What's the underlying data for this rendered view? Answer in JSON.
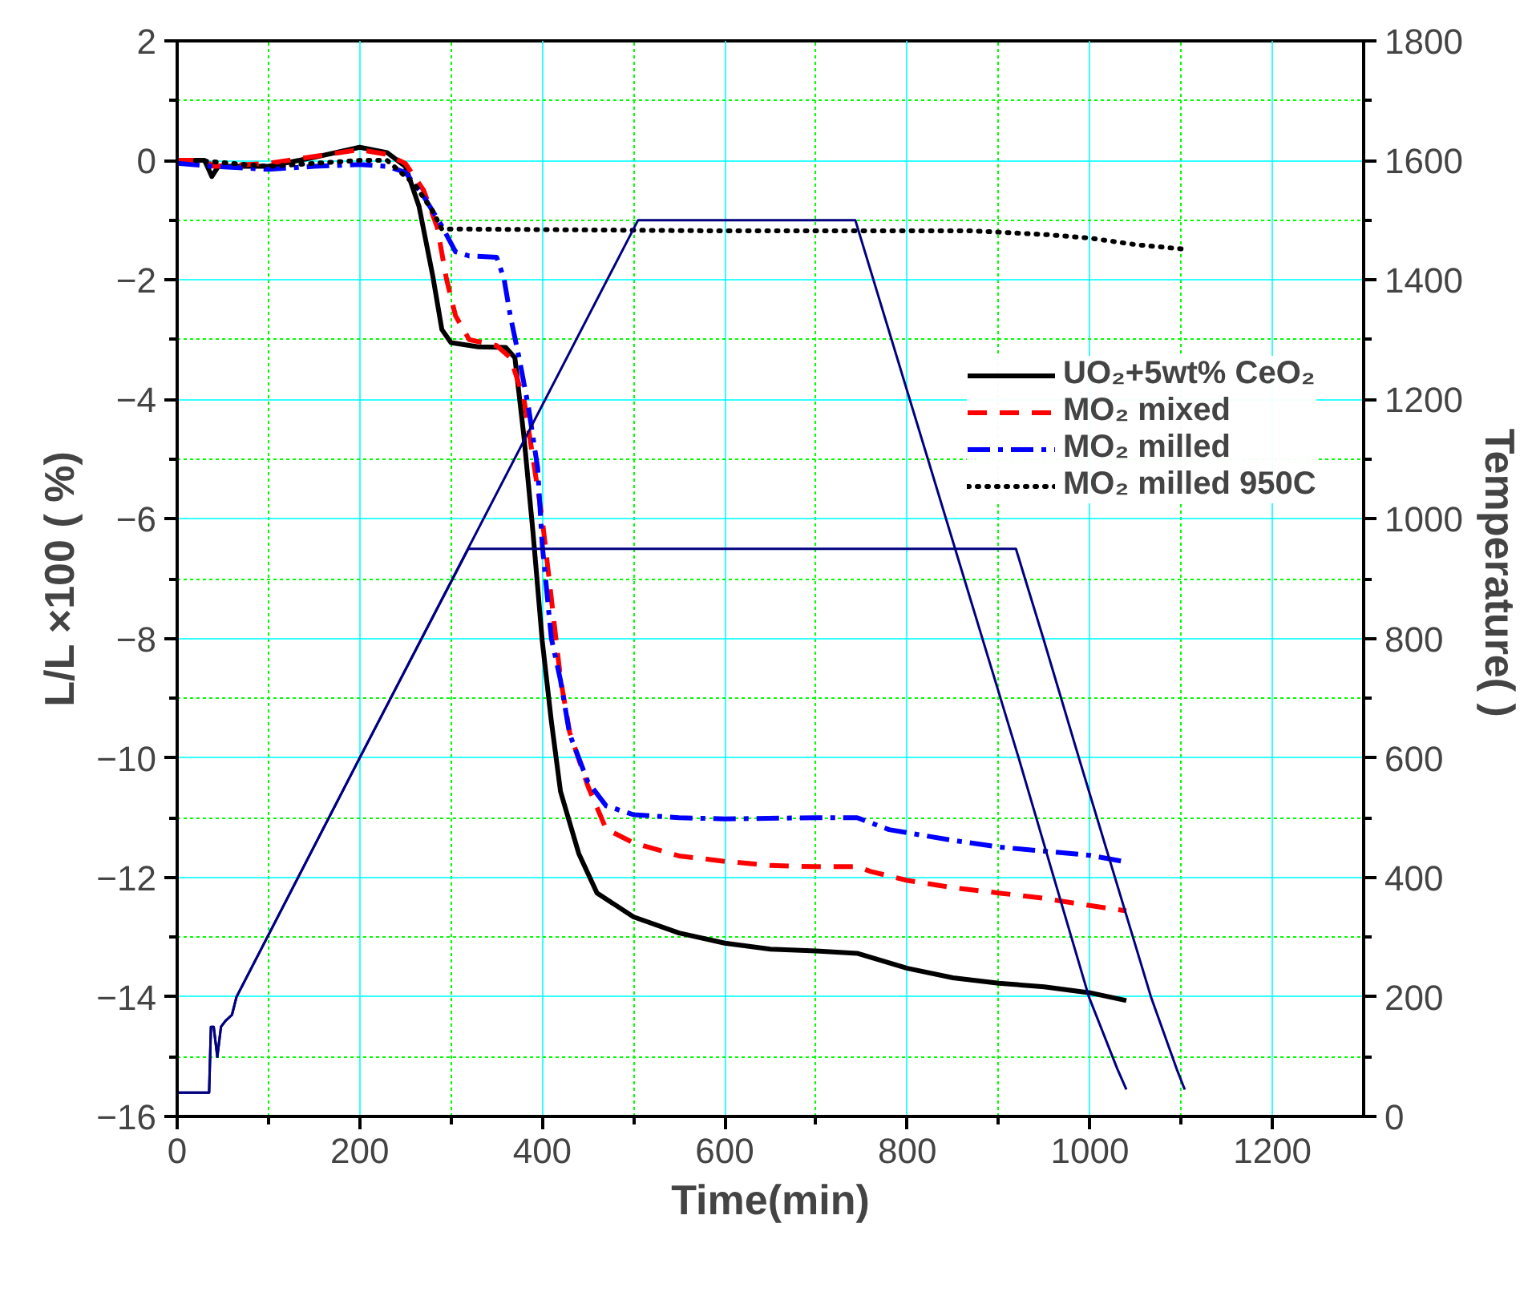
{
  "chart_data": {
    "type": "line",
    "xlabel": "Time(min)",
    "ylabel": "L/L ×100 ( %)",
    "y2label": "Temperature(  )",
    "xlim": [
      0,
      1300
    ],
    "xticks": [
      0,
      {
        "value": 100,
        "label": null
      },
      200,
      {
        "value": 300,
        "label": null
      },
      400,
      {
        "value": 500,
        "label": null
      },
      600,
      {
        "value": 700,
        "label": null
      },
      800,
      {
        "value": 900,
        "label": null
      },
      1000,
      {
        "value": 1100,
        "label": null
      },
      1200
    ],
    "ylim": [
      -16,
      2
    ],
    "yticks": [
      -16,
      {
        "value": -15,
        "label": null
      },
      -14,
      {
        "value": -13,
        "label": null
      },
      -12,
      {
        "value": -11,
        "label": null
      },
      -10,
      {
        "value": -9,
        "label": null
      },
      -8,
      {
        "value": -7,
        "label": null
      },
      -6,
      {
        "value": -5,
        "label": null
      },
      -4,
      {
        "value": -3,
        "label": null
      },
      -2,
      {
        "value": -1,
        "label": null
      },
      0,
      {
        "value": 1,
        "label": null
      },
      2
    ],
    "y2lim": [
      0,
      1800
    ],
    "y2ticks": [
      0,
      {
        "value": 100,
        "label": null
      },
      200,
      {
        "value": 300,
        "label": null
      },
      400,
      {
        "value": 500,
        "label": null
      },
      600,
      {
        "value": 700,
        "label": null
      },
      800,
      {
        "value": 900,
        "label": null
      },
      1000,
      {
        "value": 1100,
        "label": null
      },
      1200,
      {
        "value": 1300,
        "label": null
      },
      1400,
      {
        "value": 1500,
        "label": null
      },
      1600,
      {
        "value": 1700,
        "label": null
      },
      1800
    ],
    "grid": true,
    "legend": "right",
    "series": [
      {
        "name": "UO₂+5wt% CeO₂",
        "color": "#000000",
        "line_style": "solid",
        "x": [
          0,
          30,
          38,
          45,
          100,
          150,
          200,
          230,
          250,
          265,
          280,
          290,
          300,
          330,
          360,
          370,
          380,
          390,
          400,
          410,
          420,
          440,
          460,
          500,
          550,
          600,
          650,
          700,
          745,
          800,
          850,
          900,
          950,
          1000,
          1040
        ],
        "values": [
          0,
          0,
          -0.27,
          -0.1,
          -0.1,
          0.05,
          0.22,
          0.13,
          -0.1,
          -0.77,
          -1.93,
          -2.83,
          -3.05,
          -3.12,
          -3.13,
          -3.3,
          -4.63,
          -6.25,
          -8.04,
          -9.39,
          -10.56,
          -11.6,
          -12.26,
          -12.66,
          -12.93,
          -13.1,
          -13.2,
          -13.23,
          -13.27,
          -13.52,
          -13.68,
          -13.77,
          -13.83,
          -13.93,
          -14.06
        ]
      },
      {
        "name": "MO₂ mixed",
        "color": "#ff0000",
        "line_style": "dashed",
        "x": [
          0,
          30,
          40,
          100,
          200,
          230,
          250,
          270,
          285,
          295,
          305,
          320,
          350,
          365,
          380,
          400,
          415,
          420,
          430,
          450,
          470,
          500,
          550,
          600,
          650,
          700,
          745,
          760,
          800,
          850,
          900,
          950,
          1000,
          1040
        ],
        "values": [
          0,
          0,
          -0.1,
          -0.05,
          0.18,
          0.1,
          -0.05,
          -0.5,
          -1.12,
          -1.98,
          -2.6,
          -3.0,
          -3.1,
          -3.3,
          -4.0,
          -6.0,
          -8.0,
          -8.67,
          -9.57,
          -10.47,
          -11.19,
          -11.42,
          -11.64,
          -11.73,
          -11.8,
          -11.82,
          -11.82,
          -11.9,
          -12.05,
          -12.17,
          -12.26,
          -12.35,
          -12.47,
          -12.56
        ]
      },
      {
        "name": "MO₂ milled",
        "color": "#0000ff",
        "line_style": "dashdot",
        "x": [
          0,
          40,
          100,
          150,
          200,
          230,
          250,
          270,
          290,
          305,
          320,
          350,
          358,
          365,
          375,
          385,
          395,
          400,
          410,
          420,
          430,
          450,
          470,
          500,
          550,
          600,
          700,
          745,
          780,
          850,
          900,
          950,
          1000,
          1040
        ],
        "values": [
          -0.05,
          -0.1,
          -0.15,
          -0.1,
          -0.07,
          -0.1,
          -0.2,
          -0.6,
          -1.1,
          -1.53,
          -1.6,
          -1.62,
          -1.97,
          -2.6,
          -3.33,
          -4.14,
          -5.15,
          -6.43,
          -8.0,
          -8.7,
          -9.6,
          -10.4,
          -10.8,
          -10.95,
          -11.0,
          -11.02,
          -11.0,
          -11.0,
          -11.2,
          -11.38,
          -11.49,
          -11.56,
          -11.63,
          -11.74
        ]
      },
      {
        "name": "MO₂ milled 950C",
        "color": "#000000",
        "line_style": "dotted",
        "x": [
          20,
          60,
          100,
          150,
          200,
          230,
          260,
          280,
          290,
          320,
          600,
          870,
          900,
          950,
          1000,
          1050,
          1100
        ],
        "values": [
          0,
          -0.05,
          -0.1,
          -0.05,
          0,
          0,
          -0.4,
          -0.85,
          -1.15,
          -1.15,
          -1.18,
          -1.18,
          -1.2,
          -1.24,
          -1.3,
          -1.41,
          -1.48
        ]
      },
      {
        "color": "#000080",
        "line_style": "solid",
        "axis": "y2",
        "x": [
          0,
          35,
          37,
          40,
          44,
          48,
          53,
          60,
          65,
          200,
          505,
          743,
          922,
          999,
          1030,
          1040
        ],
        "values": [
          40,
          40,
          150,
          150,
          100,
          150,
          160,
          170,
          200,
          600,
          1500,
          1500,
          600,
          200,
          80,
          45
        ]
      },
      {
        "color": "#000080",
        "line_style": "solid",
        "axis": "y2",
        "x": [
          0,
          35,
          37,
          40,
          44,
          48,
          53,
          60,
          65,
          200,
          319,
          919,
          949,
          988,
          1067,
          1095,
          1104
        ],
        "values": [
          40,
          40,
          150,
          150,
          100,
          150,
          160,
          170,
          200,
          600,
          950,
          950,
          800,
          600,
          200,
          80,
          45
        ]
      }
    ]
  }
}
